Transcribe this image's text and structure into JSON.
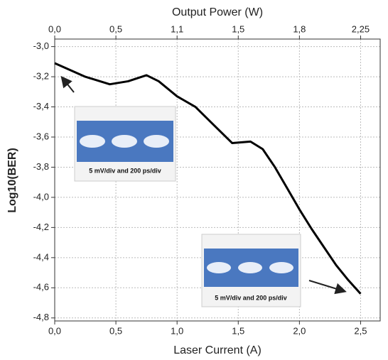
{
  "chart_data": {
    "type": "line",
    "x_label": "Laser Current (A)",
    "y_label": "Log10(BER)",
    "x2_label": "Output Power (W)",
    "x": [
      0,
      0.25,
      0.45,
      0.6,
      0.75,
      0.85,
      1.0,
      1.15,
      1.3,
      1.45,
      1.6,
      1.7,
      1.8,
      1.9,
      2.0,
      2.1,
      2.2,
      2.3,
      2.4,
      2.5
    ],
    "series": [
      {
        "color": "#000000",
        "values": [
          -3.11,
          -3.2,
          -3.25,
          -3.23,
          -3.19,
          -3.23,
          -3.33,
          -3.4,
          -3.52,
          -3.64,
          -3.63,
          -3.68,
          -3.8,
          -3.94,
          -4.08,
          -4.21,
          -4.33,
          -4.45,
          -4.55,
          -4.64
        ]
      }
    ],
    "xlim": [
      0,
      2.66
    ],
    "ylim": [
      -4.82,
      -2.95
    ],
    "xticks": [
      {
        "value": 0,
        "label": "0,0"
      },
      {
        "value": 0.5,
        "label": "0,5"
      },
      {
        "value": 1.0,
        "label": "1,0"
      },
      {
        "value": 1.5,
        "label": "1,5"
      },
      {
        "value": 2.0,
        "label": "2,0"
      },
      {
        "value": 2.5,
        "label": "2,5"
      }
    ],
    "x2ticks": [
      {
        "value": 0,
        "label": "0,0"
      },
      {
        "value": 0.5,
        "label": "0,5"
      },
      {
        "value": 1.1,
        "label": "1,1"
      },
      {
        "value": 1.5,
        "label": "1,5"
      },
      {
        "value": 1.8,
        "label": "1,8"
      },
      {
        "value": 2.25,
        "label": "2,25"
      }
    ],
    "yticks": [
      {
        "value": -3.0,
        "label": "-3,0"
      },
      {
        "value": -3.2,
        "label": "-3,2"
      },
      {
        "value": -3.4,
        "label": "-3,4"
      },
      {
        "value": -3.6,
        "label": "-3,6"
      },
      {
        "value": -3.8,
        "label": "-3,8"
      },
      {
        "value": -4.0,
        "label": "-4,0"
      },
      {
        "value": -4.2,
        "label": "-4,2"
      },
      {
        "value": -4.4,
        "label": "-4,4"
      },
      {
        "value": -4.6,
        "label": "-4,6"
      },
      {
        "value": -4.8,
        "label": "-4,8"
      }
    ],
    "grid": true,
    "annotations": [
      "5 mV/div and 200 ps/div",
      "5 mV/div and 200 ps/div"
    ]
  }
}
